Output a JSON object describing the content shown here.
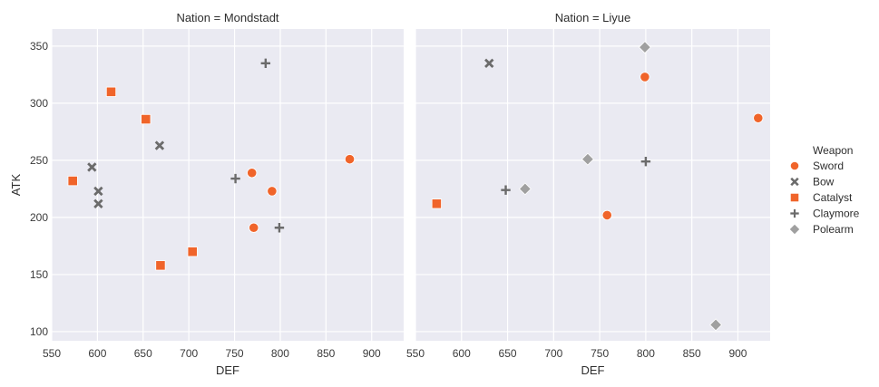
{
  "chart_data": {
    "type": "scatter",
    "xlabel": "DEF",
    "ylabel": "ATK",
    "xlim": [
      550,
      935
    ],
    "ylim": [
      92,
      365
    ],
    "xticks": [
      550,
      600,
      650,
      700,
      750,
      800,
      850,
      900
    ],
    "yticks": [
      100,
      150,
      200,
      250,
      300,
      350
    ],
    "grid": true,
    "background_color": "#eaeaf2",
    "legend_title": "Weapon",
    "legend_placement": "right",
    "legend": [
      {
        "name": "Sword",
        "marker": "circle",
        "color": "#f0642a"
      },
      {
        "name": "Bow",
        "marker": "x",
        "color": "#6b6b6b"
      },
      {
        "name": "Catalyst",
        "marker": "square",
        "color": "#f0642a"
      },
      {
        "name": "Claymore",
        "marker": "plus",
        "color": "#6b6b6b"
      },
      {
        "name": "Polearm",
        "marker": "diamond",
        "color": "#a0a0a0"
      }
    ],
    "panels": [
      {
        "title": "Nation = Mondstadt",
        "series": [
          {
            "name": "Sword",
            "points": [
              [
                769,
                239
              ],
              [
                771,
                191
              ],
              [
                791,
                223
              ],
              [
                876,
                251
              ]
            ]
          },
          {
            "name": "Bow",
            "points": [
              [
                594,
                244
              ],
              [
                601,
                223
              ],
              [
                601,
                212
              ],
              [
                668,
                263
              ]
            ]
          },
          {
            "name": "Catalyst",
            "points": [
              [
                573,
                232
              ],
              [
                615,
                310
              ],
              [
                653,
                286
              ],
              [
                669,
                158
              ],
              [
                704,
                170
              ]
            ]
          },
          {
            "name": "Claymore",
            "points": [
              [
                751,
                234
              ],
              [
                784,
                335
              ],
              [
                799,
                191
              ]
            ]
          },
          {
            "name": "Polearm",
            "points": []
          }
        ]
      },
      {
        "title": "Nation = Liyue",
        "series": [
          {
            "name": "Sword",
            "points": [
              [
                758,
                202
              ],
              [
                799,
                323
              ],
              [
                922,
                287
              ]
            ]
          },
          {
            "name": "Bow",
            "points": [
              [
                630,
                335
              ]
            ]
          },
          {
            "name": "Catalyst",
            "points": [
              [
                573,
                212
              ]
            ]
          },
          {
            "name": "Claymore",
            "points": [
              [
                648,
                224
              ],
              [
                800,
                249
              ]
            ]
          },
          {
            "name": "Polearm",
            "points": [
              [
                669,
                225
              ],
              [
                737,
                251
              ],
              [
                799,
                349
              ],
              [
                876,
                106
              ]
            ]
          }
        ]
      }
    ]
  }
}
